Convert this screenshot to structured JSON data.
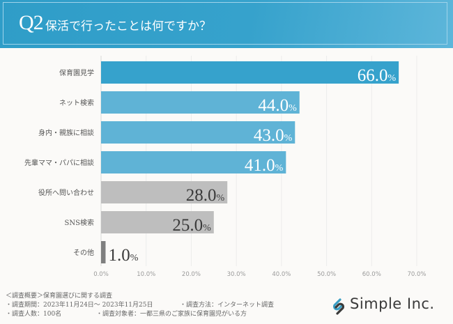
{
  "header": {
    "q_number": "Q2",
    "question": "保活で行ったことは何ですか？"
  },
  "chart_data": {
    "type": "bar",
    "orientation": "horizontal",
    "title": "保活で行ったことは何ですか？",
    "categories": [
      "保育園見学",
      "ネット検索",
      "身内・親族に相談",
      "先輩ママ・パパに相談",
      "役所へ問い合わせ",
      "SNS検索",
      "その他"
    ],
    "values": [
      66.0,
      44.0,
      43.0,
      41.0,
      28.0,
      25.0,
      1.0
    ],
    "value_labels": [
      "66.0",
      "44.0",
      "43.0",
      "41.0",
      "28.0",
      "25.0",
      "1.0"
    ],
    "value_suffix": "%",
    "bar_colors": [
      "#36a2cc",
      "#5fb3d6",
      "#5fb3d6",
      "#5fb3d6",
      "#bebebe",
      "#bebebe",
      "#7f7f7f"
    ],
    "label_colors": [
      "#ffffff",
      "#ffffff",
      "#ffffff",
      "#ffffff",
      "#3a3a3a",
      "#3a3a3a",
      "#3a3a3a"
    ],
    "xlim": [
      0,
      70
    ],
    "xticks": [
      0,
      10,
      20,
      30,
      40,
      50,
      60,
      70
    ],
    "xtick_labels": [
      "0.0%",
      "10.0%",
      "20.0%",
      "30.0%",
      "40.0%",
      "50.0%",
      "60.0%",
      "70.0%"
    ],
    "grid": true,
    "xlabel": "",
    "ylabel": ""
  },
  "footer": {
    "line1": "＜調査概要＞保育園選びに関する調査",
    "period": "・調査期間：2023年11月24日～ 2023年11月25日",
    "method": "・調査方法：インターネット調査",
    "count": "・調査人数：100名",
    "target": "・調査対象者：一都三県のご家族に保育園児がいる方"
  },
  "logo": {
    "text": "Simple Inc.",
    "color": "#3a9ec4"
  }
}
